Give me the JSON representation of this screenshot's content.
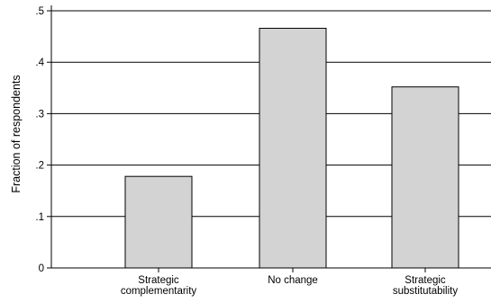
{
  "chart_data": {
    "type": "bar",
    "title": "",
    "xlabel": "",
    "ylabel": "Fraction of respondents",
    "ylim": [
      0,
      0.5
    ],
    "grid": true,
    "yticks": [
      {
        "value": 0,
        "label": "0"
      },
      {
        "value": 0.1,
        "label": ".1"
      },
      {
        "value": 0.2,
        "label": ".2"
      },
      {
        "value": 0.3,
        "label": ".3"
      },
      {
        "value": 0.4,
        "label": ".4"
      },
      {
        "value": 0.5,
        "label": ".5"
      }
    ],
    "categories": [
      [
        "Strategic",
        "complementarity"
      ],
      [
        "No change"
      ],
      [
        "Strategic",
        "substitutability"
      ]
    ],
    "values": [
      0.178,
      0.466,
      0.352
    ],
    "colors": {
      "bar_fill": "#d3d3d3",
      "bar_stroke": "#000000",
      "grid": "#000000",
      "axis": "#000000"
    }
  }
}
